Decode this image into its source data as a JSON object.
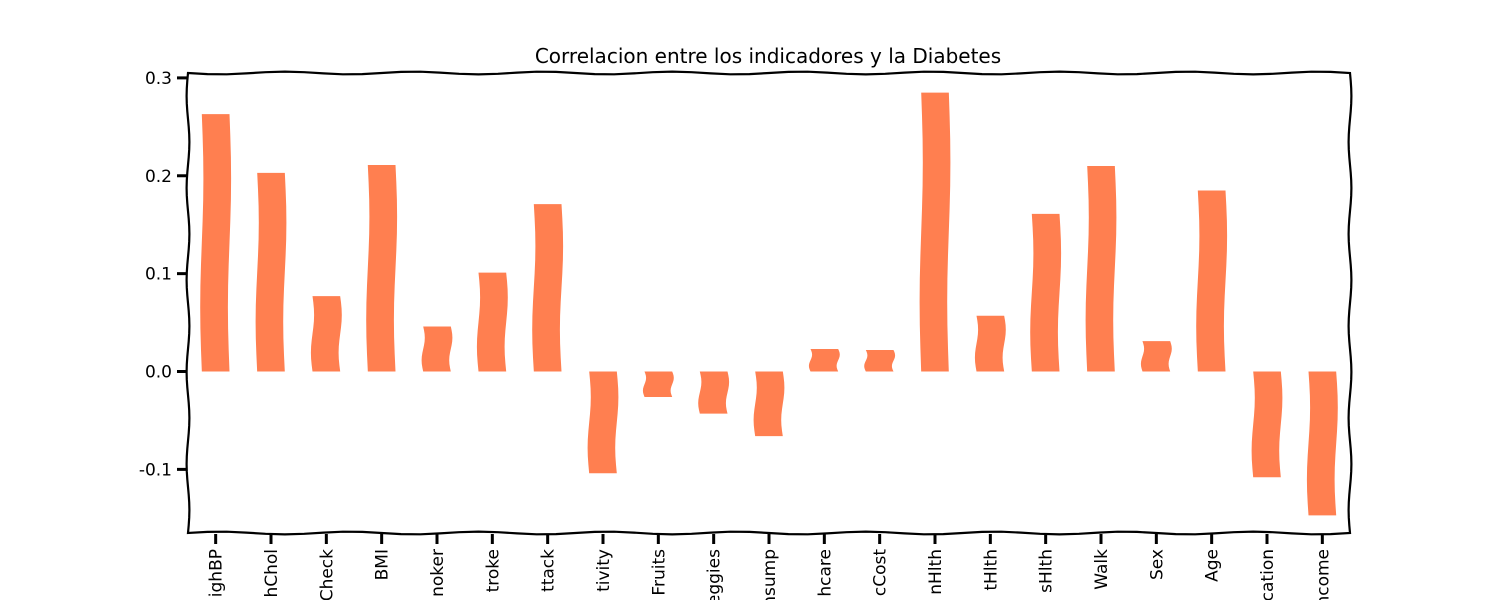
{
  "chart_data": {
    "type": "bar",
    "title": "Correlacion entre los indicadores y la Diabetes",
    "xlabel": "",
    "ylabel": "",
    "categories": [
      "ighBP",
      "hChol",
      "Check",
      "BMI",
      "noker",
      "troke",
      "ttack",
      "tivity",
      "Fruits",
      "eggies",
      "nsump",
      "hcare",
      "cCost",
      "nHlth",
      "tHlth",
      "sHlth",
      "Walk",
      "Sex",
      "Age",
      "cation",
      "ncome"
    ],
    "values": [
      0.263,
      0.203,
      0.077,
      0.211,
      0.046,
      0.101,
      0.171,
      -0.104,
      -0.026,
      -0.043,
      -0.066,
      0.023,
      0.022,
      0.285,
      0.057,
      0.161,
      0.21,
      0.031,
      0.185,
      -0.108,
      -0.147
    ],
    "ylim": [
      -0.165,
      0.305
    ],
    "yticks": [
      -0.1,
      0.0,
      0.1,
      0.2,
      0.3
    ],
    "ytick_labels": [
      "-0.1",
      "0.0",
      "0.1",
      "0.2",
      "0.3"
    ],
    "bar_color": "#ff7f50",
    "grid": false,
    "legend": "none"
  }
}
